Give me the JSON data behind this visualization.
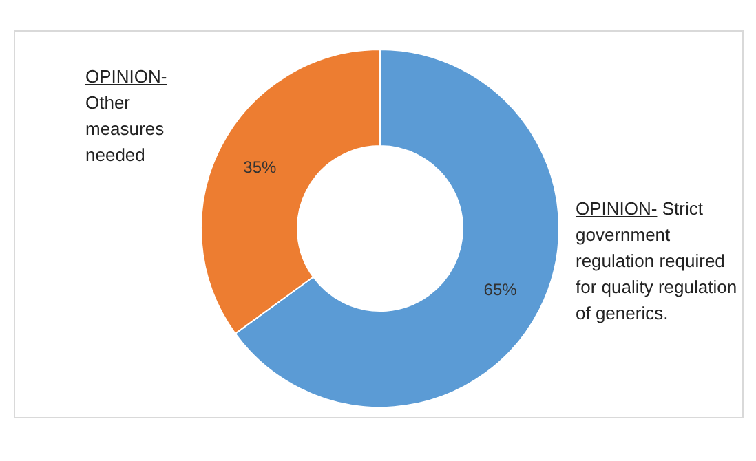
{
  "chart_data": {
    "type": "donut",
    "categories": [
      "OPINION- Strict government regulation required for quality regulation of generics.",
      "OPINION- Other measures needed"
    ],
    "values": [
      65,
      35
    ],
    "colors": [
      "#5b9bd5",
      "#ed7d31"
    ],
    "value_labels": [
      "65%",
      "35%"
    ]
  }
}
